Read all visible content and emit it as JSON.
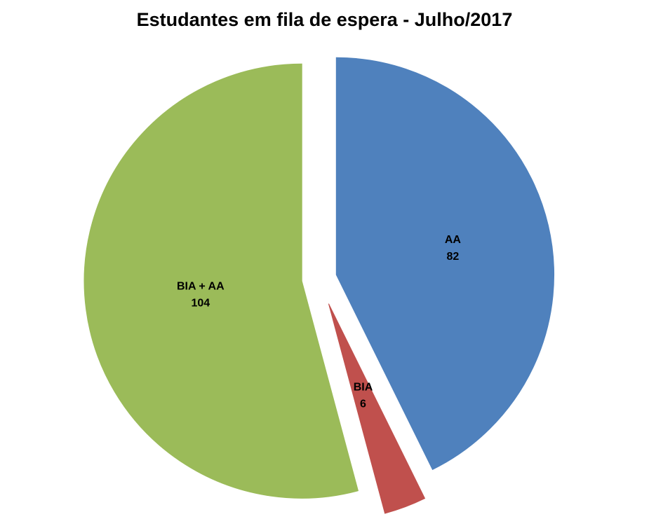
{
  "page": {
    "background": "#FFFFFF"
  },
  "chart_data": {
    "type": "pie",
    "title": "Estudantes em fila de espera - Julho/2017",
    "exploded": true,
    "start_angle_deg": 0,
    "direction": "clockwise",
    "total": 192,
    "label_color": "#000000",
    "slices": [
      {
        "label": "AA",
        "value": 82,
        "color": "#4F81BD"
      },
      {
        "label": "BIA",
        "value": 6,
        "color": "#C0504D"
      },
      {
        "label": "BIA + AA",
        "value": 104,
        "color": "#9BBB59"
      }
    ]
  }
}
